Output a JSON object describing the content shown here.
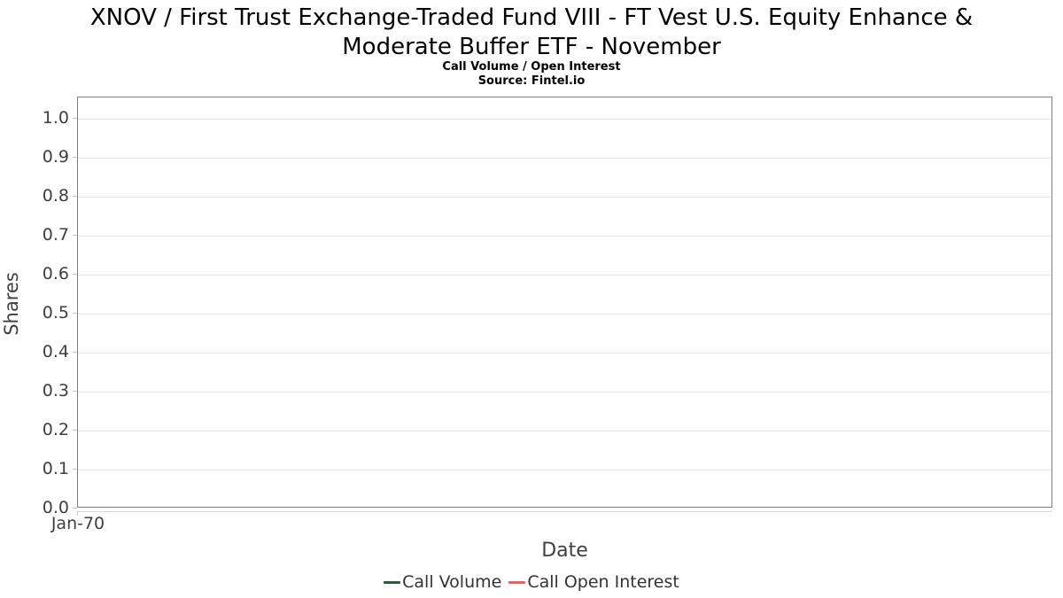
{
  "header": {
    "title_line1": "XNOV / First Trust Exchange-Traded Fund VIII - FT Vest U.S. Equity Enhance &",
    "title_line2": "Moderate Buffer ETF - November",
    "subtitle": "Call Volume / Open Interest",
    "source": "Source: Fintel.io"
  },
  "chart_data": {
    "type": "line",
    "title": "XNOV / First Trust Exchange-Traded Fund VIII - FT Vest U.S. Equity Enhance & Moderate Buffer ETF - November",
    "subtitle": "Call Volume / Open Interest",
    "source": "Source: Fintel.io",
    "xlabel": "Date",
    "ylabel": "Shares",
    "x_tick_labels": [
      "Jan-70"
    ],
    "y_tick_labels": [
      "0.0",
      "0.1",
      "0.2",
      "0.3",
      "0.4",
      "0.5",
      "0.6",
      "0.7",
      "0.8",
      "0.9",
      "1.0"
    ],
    "y_tick_values": [
      0.0,
      0.1,
      0.2,
      0.3,
      0.4,
      0.5,
      0.6,
      0.7,
      0.8,
      0.9,
      1.0
    ],
    "ylim": [
      0,
      1.0545
    ],
    "grid": "horizontal-only",
    "legend_position": "bottom-center",
    "plot_is_empty": true,
    "series": [
      {
        "name": "Call Volume",
        "color": "#2e5c40",
        "x": [],
        "values": []
      },
      {
        "name": "Call Open Interest",
        "color": "#f25f5f",
        "x": [],
        "values": []
      }
    ]
  },
  "colors": {
    "plot_border": "#808080",
    "gridline": "#e6e6e6",
    "tick_mark": "#c9c9c9",
    "axis_text": "#3f3f3f",
    "title_text": "#000000"
  }
}
